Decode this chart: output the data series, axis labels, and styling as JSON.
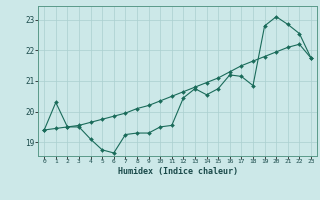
{
  "xlabel": "Humidex (Indice chaleur)",
  "xlim": [
    -0.5,
    23.5
  ],
  "ylim": [
    18.55,
    23.45
  ],
  "yticks": [
    19,
    20,
    21,
    22,
    23
  ],
  "xticks": [
    0,
    1,
    2,
    3,
    4,
    5,
    6,
    7,
    8,
    9,
    10,
    11,
    12,
    13,
    14,
    15,
    16,
    17,
    18,
    19,
    20,
    21,
    22,
    23
  ],
  "bg_color": "#cce8e8",
  "line_color": "#1a6b5a",
  "grid_color": "#aacfcf",
  "line1_x": [
    0,
    1,
    2,
    3,
    4,
    5,
    6,
    7,
    8,
    9,
    10,
    11,
    12,
    13,
    14,
    15,
    16,
    17,
    18,
    19,
    20,
    21,
    22,
    23
  ],
  "line1_y": [
    19.4,
    20.3,
    19.5,
    19.5,
    19.1,
    18.75,
    18.65,
    19.25,
    19.3,
    19.3,
    19.5,
    19.55,
    20.45,
    20.75,
    20.55,
    20.75,
    21.2,
    21.15,
    20.85,
    22.8,
    23.1,
    22.85,
    22.55,
    21.75
  ],
  "line2_x": [
    0,
    1,
    2,
    3,
    4,
    5,
    6,
    7,
    8,
    9,
    10,
    11,
    12,
    13,
    14,
    15,
    16,
    17,
    18,
    19,
    20,
    21,
    22,
    23
  ],
  "line2_y": [
    19.4,
    19.45,
    19.5,
    19.55,
    19.65,
    19.75,
    19.85,
    19.95,
    20.1,
    20.2,
    20.35,
    20.5,
    20.65,
    20.8,
    20.95,
    21.1,
    21.3,
    21.5,
    21.65,
    21.8,
    21.95,
    22.1,
    22.2,
    21.75
  ]
}
